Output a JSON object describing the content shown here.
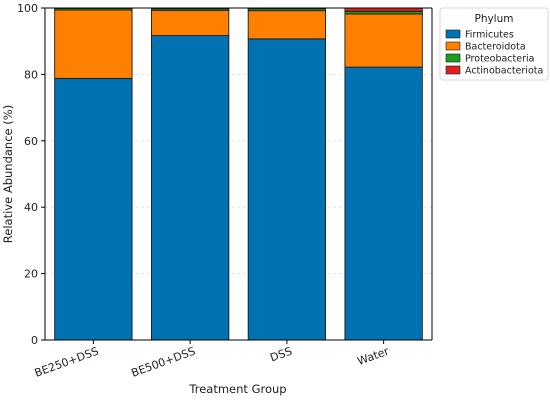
{
  "chart_data": {
    "type": "bar",
    "stacked": true,
    "categories": [
      "BE250+DSS",
      "BE500+DSS",
      "DSS",
      "Water"
    ],
    "series": [
      {
        "name": "Firmicutes",
        "color": "#0072b2",
        "values": [
          78.8,
          91.7,
          90.7,
          82.2
        ]
      },
      {
        "name": "Bacteroidota",
        "color": "#ff8000",
        "values": [
          20.6,
          7.6,
          8.5,
          16.0
        ]
      },
      {
        "name": "Proteobacteria",
        "color": "#1a9e1a",
        "values": [
          0.5,
          0.5,
          0.6,
          0.8
        ]
      },
      {
        "name": "Actinobacteriota",
        "color": "#e02020",
        "values": [
          0.1,
          0.2,
          0.2,
          1.0
        ]
      }
    ],
    "xlabel": "Treatment Group",
    "ylabel": "Relative Abundance (%)",
    "ylim": [
      0,
      100
    ],
    "yticks": [
      0,
      20,
      40,
      60,
      80,
      100
    ],
    "grid": true,
    "legend": {
      "title": "Phylum",
      "placement": "top-right"
    }
  }
}
